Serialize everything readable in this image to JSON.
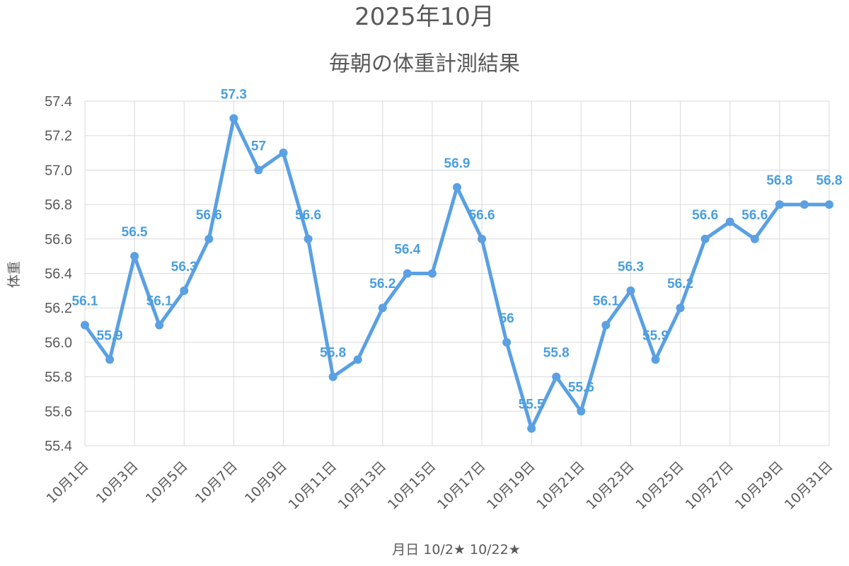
{
  "chart_data": {
    "type": "line",
    "title": "2025年10月",
    "subtitle": "毎朝の体重計測結果",
    "xlabel": "月日 10/2★ 10/22★",
    "ylabel": "体重",
    "ylim": [
      55.4,
      57.4
    ],
    "y_ticks": [
      "55.4",
      "55.6",
      "55.8",
      "56.0",
      "56.2",
      "56.4",
      "56.6",
      "56.8",
      "57.0",
      "57.2",
      "57.4"
    ],
    "y_tick_values": [
      55.4,
      55.6,
      55.8,
      56.0,
      56.2,
      56.4,
      56.6,
      56.8,
      57.0,
      57.2,
      57.4
    ],
    "categories": [
      "10月1日",
      "10月2日",
      "10月3日",
      "10月4日",
      "10月5日",
      "10月6日",
      "10月7日",
      "10月8日",
      "10月9日",
      "10月10日",
      "10月11日",
      "10月12日",
      "10月13日",
      "10月14日",
      "10月15日",
      "10月16日",
      "10月17日",
      "10月18日",
      "10月19日",
      "10月20日",
      "10月21日",
      "10月22日",
      "10月23日",
      "10月24日",
      "10月25日",
      "10月26日",
      "10月27日",
      "10月28日",
      "10月29日",
      "10月30日",
      "10月31日"
    ],
    "x_tick_labels": [
      "10月1日",
      "",
      "10月3日",
      "",
      "10月5日",
      "",
      "10月7日",
      "",
      "10月9日",
      "",
      "10月11日",
      "",
      "10月13日",
      "",
      "10月15日",
      "",
      "10月17日",
      "",
      "10月19日",
      "",
      "10月21日",
      "",
      "10月23日",
      "",
      "10月25日",
      "",
      "10月27日",
      "",
      "10月29日",
      "",
      "10月31日"
    ],
    "values": [
      56.1,
      55.9,
      56.5,
      56.1,
      56.3,
      56.6,
      57.3,
      57.0,
      57.1,
      56.6,
      55.8,
      55.9,
      56.2,
      56.4,
      56.4,
      56.9,
      56.6,
      56.0,
      55.5,
      55.8,
      55.6,
      56.1,
      56.3,
      55.9,
      56.2,
      56.6,
      56.7,
      56.6,
      56.8,
      56.8,
      56.8
    ],
    "data_labels": [
      "56.1",
      "55.9",
      "56.5",
      "56.1",
      "56.3",
      "56.6",
      "57.3",
      "57",
      "",
      "56.6",
      "55.8",
      "",
      "56.2",
      "56.4",
      "",
      "56.9",
      "56.6",
      "56",
      "55.5",
      "55.8",
      "55.6",
      "56.1",
      "56.3",
      "55.9",
      "56.2",
      "56.6",
      "",
      "56.6",
      "56.8",
      "",
      "56.8"
    ],
    "grid": true,
    "legend": "none",
    "color": "#5AA0E3"
  }
}
